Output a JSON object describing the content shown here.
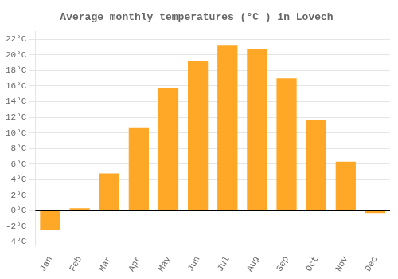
{
  "chart_data": {
    "type": "bar",
    "title": "Average monthly temperatures (°C ) in Lovech",
    "categories": [
      "Jan",
      "Feb",
      "Mar",
      "Apr",
      "May",
      "Jun",
      "Jul",
      "Aug",
      "Sep",
      "Oct",
      "Nov",
      "Dec"
    ],
    "values": [
      -2.5,
      0.3,
      4.8,
      10.7,
      15.7,
      19.2,
      21.2,
      20.7,
      17.0,
      11.7,
      6.3,
      -0.3
    ],
    "color": "#FFA726",
    "ylim": [
      -4.5,
      23
    ],
    "yticks": [
      {
        "value": -4,
        "label": "-4°C"
      },
      {
        "value": -2,
        "label": "-2°C"
      },
      {
        "value": 0,
        "label": "0°C"
      },
      {
        "value": 2,
        "label": "2°C"
      },
      {
        "value": 4,
        "label": "4°C"
      },
      {
        "value": 6,
        "label": "6°C"
      },
      {
        "value": 8,
        "label": "8°C"
      },
      {
        "value": 10,
        "label": "10°C"
      },
      {
        "value": 12,
        "label": "12°C"
      },
      {
        "value": 14,
        "label": "14°C"
      },
      {
        "value": 16,
        "label": "16°C"
      },
      {
        "value": 18,
        "label": "18°C"
      },
      {
        "value": 20,
        "label": "20°C"
      },
      {
        "value": 22,
        "label": "22°C"
      }
    ],
    "grid": true
  }
}
